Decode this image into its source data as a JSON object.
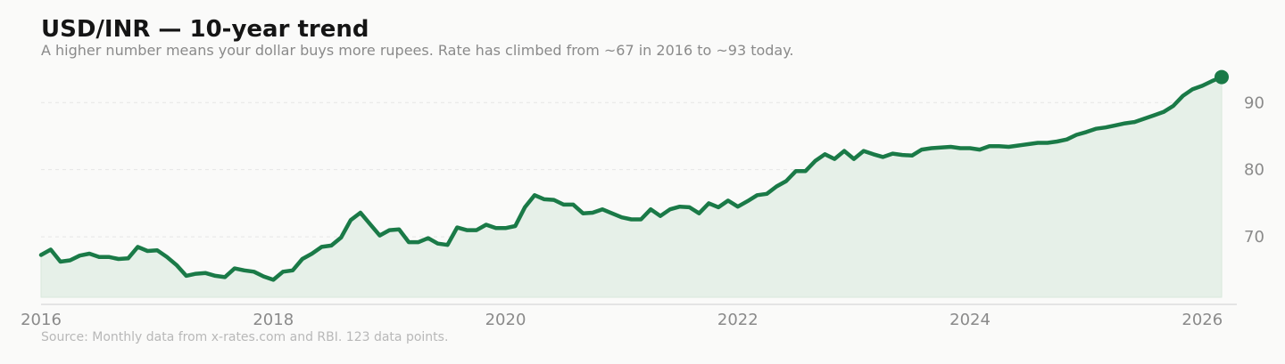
{
  "header": {
    "title": "USD/INR — 10-year trend",
    "subtitle": "A higher number means your dollar buys more rupees. Rate has climbed from ~67 in 2016 to ~93 today."
  },
  "footer": {
    "source": "Source: Monthly data from x-rates.com and RBI. 123 data points."
  },
  "colors": {
    "line": "#1a7a47",
    "fill": "#e6f0e8",
    "grid": "#e6e6e6",
    "axis": "#dddddd",
    "text_muted": "#8a8a8a"
  },
  "chart_data": {
    "type": "area",
    "title": "USD/INR — 10-year trend",
    "subtitle": "A higher number means your dollar buys more rupees. Rate has climbed from ~67 in 2016 to ~93 today.",
    "xlabel": "",
    "ylabel": "",
    "x_axis": "date",
    "x_ticks": [
      "2016",
      "2018",
      "2020",
      "2022",
      "2024",
      "2026"
    ],
    "y_ticks": [
      70,
      80,
      90
    ],
    "y_axis_side": "right",
    "xlim": [
      "2016-01",
      "2026-04"
    ],
    "ylim": [
      61,
      96
    ],
    "grid": "horizontal dashed",
    "legend": "none",
    "end_marker": true,
    "series": [
      {
        "x": [
          "2016-01",
          "2016-02",
          "2016-03",
          "2016-04",
          "2016-05",
          "2016-06",
          "2016-07",
          "2016-08",
          "2016-09",
          "2016-10",
          "2016-11",
          "2016-12",
          "2017-01",
          "2017-02",
          "2017-03",
          "2017-04",
          "2017-05",
          "2017-06",
          "2017-07",
          "2017-08",
          "2017-09",
          "2017-10",
          "2017-11",
          "2017-12",
          "2018-01",
          "2018-02",
          "2018-03",
          "2018-04",
          "2018-05",
          "2018-06",
          "2018-07",
          "2018-08",
          "2018-09",
          "2018-10",
          "2018-11",
          "2018-12",
          "2019-01",
          "2019-02",
          "2019-03",
          "2019-04",
          "2019-05",
          "2019-06",
          "2019-07",
          "2019-08",
          "2019-09",
          "2019-10",
          "2019-11",
          "2019-12",
          "2020-01",
          "2020-02",
          "2020-03",
          "2020-04",
          "2020-05",
          "2020-06",
          "2020-07",
          "2020-08",
          "2020-09",
          "2020-10",
          "2020-11",
          "2020-12",
          "2021-01",
          "2021-02",
          "2021-03",
          "2021-04",
          "2021-05",
          "2021-06",
          "2021-07",
          "2021-08",
          "2021-09",
          "2021-10",
          "2021-11",
          "2021-12",
          "2022-01",
          "2022-02",
          "2022-03",
          "2022-04",
          "2022-05",
          "2022-06",
          "2022-07",
          "2022-08",
          "2022-09",
          "2022-10",
          "2022-11",
          "2022-12",
          "2023-01",
          "2023-02",
          "2023-03",
          "2023-04",
          "2023-05",
          "2023-06",
          "2023-07",
          "2023-08",
          "2023-09",
          "2023-10",
          "2023-11",
          "2023-12",
          "2024-01",
          "2024-02",
          "2024-03",
          "2024-04",
          "2024-05",
          "2024-06",
          "2024-07",
          "2024-08",
          "2024-09",
          "2024-10",
          "2024-11",
          "2024-12",
          "2025-01",
          "2025-02",
          "2025-03",
          "2025-04",
          "2025-05",
          "2025-06",
          "2025-07",
          "2025-08",
          "2025-09",
          "2025-10",
          "2025-11",
          "2025-12",
          "2026-01",
          "2026-02",
          "2026-03"
        ],
        "values": [
          67.3,
          68.1,
          66.3,
          66.5,
          67.2,
          67.5,
          67.0,
          67.0,
          66.7,
          66.8,
          68.5,
          67.9,
          68.0,
          67.0,
          65.8,
          64.2,
          64.5,
          64.6,
          64.2,
          64.0,
          65.3,
          65.0,
          64.8,
          64.1,
          63.6,
          64.8,
          65.0,
          66.7,
          67.5,
          68.5,
          68.7,
          69.9,
          72.5,
          73.6,
          71.9,
          70.2,
          71.0,
          71.1,
          69.2,
          69.2,
          69.8,
          69.0,
          68.8,
          71.4,
          71.0,
          71.0,
          71.8,
          71.3,
          71.3,
          71.6,
          74.4,
          76.2,
          75.6,
          75.5,
          74.8,
          74.8,
          73.5,
          73.6,
          74.1,
          73.5,
          72.9,
          72.6,
          72.6,
          74.1,
          73.1,
          74.1,
          74.5,
          74.4,
          73.5,
          75.0,
          74.4,
          75.4,
          74.5,
          75.3,
          76.2,
          76.4,
          77.5,
          78.3,
          79.8,
          79.8,
          81.3,
          82.3,
          81.6,
          82.8,
          81.6,
          82.8,
          82.3,
          81.9,
          82.4,
          82.2,
          82.1,
          83.0,
          83.2,
          83.3,
          83.4,
          83.2,
          83.2,
          83.0,
          83.5,
          83.5,
          83.4,
          83.6,
          83.8,
          84.0,
          84.0,
          84.2,
          84.5,
          85.2,
          85.6,
          86.1,
          86.3,
          86.6,
          86.9,
          87.1,
          87.6,
          88.1,
          88.6,
          89.5,
          91.0,
          92.0,
          92.5,
          93.2,
          93.8
        ]
      }
    ]
  }
}
